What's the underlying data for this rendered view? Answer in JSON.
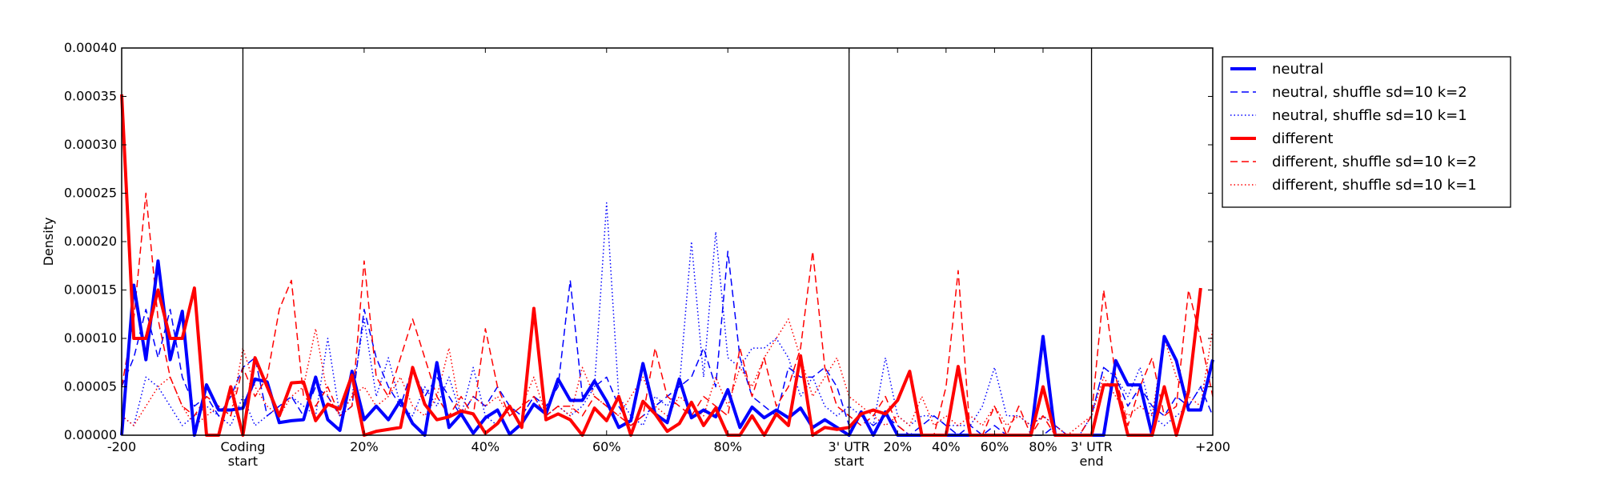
{
  "chart_data": {
    "type": "line",
    "title": "",
    "xlabel": "",
    "ylabel": "Density",
    "ylim": [
      0,
      0.0004
    ],
    "yticks": [
      "0.00000",
      "0.00005",
      "0.00010",
      "0.00015",
      "0.00020",
      "0.00025",
      "0.00030",
      "0.00035",
      "0.00040"
    ],
    "x_tick_labels": [
      {
        "label": "-200",
        "x": 0
      },
      {
        "label": "Coding\nstart",
        "x": 10
      },
      {
        "label": "20%",
        "x": 20
      },
      {
        "label": "40%",
        "x": 30
      },
      {
        "label": "60%",
        "x": 40
      },
      {
        "label": "80%",
        "x": 50
      },
      {
        "label": "3' UTR\nstart",
        "x": 60
      },
      {
        "label": "20%",
        "x": 64
      },
      {
        "label": "40%",
        "x": 68
      },
      {
        "label": "60%",
        "x": 72
      },
      {
        "label": "80%",
        "x": 76
      },
      {
        "label": "3' UTR\nend",
        "x": 80
      },
      {
        "label": "+200",
        "x": 90
      }
    ],
    "xlim": [
      0,
      90
    ],
    "region_boundaries": [
      10,
      60,
      80
    ],
    "grid": false,
    "legend_position": "outside-right-top",
    "series": [
      {
        "name": "neutral",
        "color": "#0000ff",
        "style": "solid",
        "width": 4,
        "values": [
          0,
          0.000155,
          7.8e-05,
          0.00018,
          7.8e-05,
          0.000128,
          0,
          5.2e-05,
          2.6e-05,
          2.6e-05,
          2.8e-05,
          5.8e-05,
          5.5e-05,
          1.3e-05,
          1.5e-05,
          1.6e-05,
          6e-05,
          1.6e-05,
          5e-06,
          6.6e-05,
          1.6e-05,
          3e-05,
          1.6e-05,
          3.6e-05,
          1.2e-05,
          0,
          7.5e-05,
          8e-06,
          2.2e-05,
          2e-06,
          1.8e-05,
          2.6e-05,
          1e-06,
          1.2e-05,
          3.2e-05,
          2.2e-05,
          5.8e-05,
          3.6e-05,
          3.6e-05,
          5.6e-05,
          3.5e-05,
          8e-06,
          1.5e-05,
          7.4e-05,
          2.2e-05,
          1.3e-05,
          5.8e-05,
          1.8e-05,
          2.6e-05,
          1.9e-05,
          4.7e-05,
          8e-06,
          2.9e-05,
          1.8e-05,
          2.6e-05,
          1.8e-05,
          2.8e-05,
          8e-06,
          1.6e-05,
          8e-06,
          0,
          2.4e-05,
          0,
          2.4e-05,
          0,
          0,
          0,
          0,
          0,
          0,
          0,
          0,
          0,
          0,
          0,
          0,
          0.000102,
          0,
          0,
          0,
          0,
          0,
          7.7e-05,
          5.2e-05,
          5.2e-05,
          0,
          0.000102,
          7.7e-05,
          2.6e-05,
          2.6e-05,
          7.8e-05
        ]
      },
      {
        "name": "neutral, shuffle sd=10 k=2",
        "color": "#0000ff",
        "style": "dashed",
        "width": 1.5,
        "values": [
          5e-05,
          8e-05,
          0.00013,
          8e-05,
          0.00013,
          6e-05,
          3e-05,
          4e-05,
          2e-05,
          4e-05,
          7e-05,
          8e-05,
          2e-05,
          3e-05,
          4e-05,
          2e-05,
          5e-05,
          4e-05,
          2e-05,
          3e-05,
          0.00013,
          8e-05,
          5e-05,
          3e-05,
          7e-05,
          4e-05,
          6e-05,
          4e-05,
          2e-05,
          4e-05,
          3e-05,
          5e-05,
          3e-05,
          2e-05,
          4e-05,
          3e-05,
          5e-05,
          0.00016,
          4e-05,
          5e-05,
          6e-05,
          3e-05,
          1e-05,
          2e-05,
          3e-05,
          4e-05,
          5e-05,
          6e-05,
          9e-05,
          5e-05,
          0.00019,
          8e-05,
          4e-05,
          3e-05,
          2e-05,
          7e-05,
          6e-05,
          6e-05,
          7e-05,
          5e-05,
          1e-05,
          2e-05,
          1e-05,
          2e-05,
          1e-05,
          0,
          1e-05,
          2e-05,
          1e-05,
          0,
          1e-05,
          0,
          1e-05,
          0,
          0,
          0,
          0,
          1e-05,
          0,
          0,
          2e-05,
          7e-05,
          6e-05,
          3e-05,
          5e-05,
          3e-05,
          2e-05,
          4e-05,
          3e-05,
          5e-05,
          2e-05
        ]
      },
      {
        "name": "neutral, shuffle sd=10 k=1",
        "color": "#0000ff",
        "style": "dotted",
        "width": 1.5,
        "values": [
          2e-05,
          1e-05,
          6e-05,
          5e-05,
          3e-05,
          1e-05,
          2e-05,
          3e-05,
          2e-05,
          1e-05,
          4e-05,
          1e-05,
          2e-05,
          3e-05,
          4e-05,
          3e-05,
          2e-05,
          0.0001,
          2e-05,
          4e-05,
          0.00012,
          4e-05,
          8e-05,
          3e-05,
          2e-05,
          5e-05,
          3e-05,
          6e-05,
          2e-05,
          7e-05,
          2e-05,
          1e-05,
          3e-05,
          2e-05,
          4e-05,
          2e-05,
          3e-05,
          2e-05,
          3e-05,
          5e-05,
          0.00024,
          4e-05,
          2e-05,
          1e-05,
          4e-05,
          3e-05,
          5e-05,
          0.0002,
          6e-05,
          0.00021,
          8e-05,
          7e-05,
          9e-05,
          9e-05,
          0.0001,
          8e-05,
          4e-05,
          6e-05,
          3e-05,
          2e-05,
          3e-05,
          2e-05,
          1e-05,
          8e-05,
          2e-05,
          1e-05,
          2e-05,
          2e-05,
          1e-05,
          1e-05,
          1e-05,
          3e-05,
          7e-05,
          2e-05,
          2e-05,
          1e-05,
          2e-05,
          1e-05,
          0,
          0,
          2e-05,
          7e-05,
          6e-05,
          4e-05,
          7e-05,
          2e-05,
          1e-05,
          2e-05,
          3e-05,
          5e-05,
          6e-05
        ]
      },
      {
        "name": "different",
        "color": "#ff0000",
        "style": "solid",
        "width": 4,
        "values": [
          0.000352,
          0.0001,
          0.0001,
          0.00015,
          0.0001,
          0.0001,
          0.000152,
          0,
          0,
          5e-05,
          0,
          8e-05,
          5e-05,
          2e-05,
          5.4e-05,
          5.5e-05,
          1.5e-05,
          3.2e-05,
          2.7e-05,
          6.2e-05,
          0,
          4e-06,
          6e-06,
          8e-06,
          7e-05,
          3.2e-05,
          1.6e-05,
          1.9e-05,
          2.5e-05,
          2.2e-05,
          2e-06,
          1.2e-05,
          3e-05,
          8e-06,
          0.000131,
          1.6e-05,
          2.2e-05,
          1.6e-05,
          0,
          2.8e-05,
          1.5e-05,
          4e-05,
          0,
          3.5e-05,
          2.2e-05,
          4e-06,
          1.2e-05,
          3.4e-05,
          1e-05,
          2.8e-05,
          0,
          0,
          2e-05,
          0,
          2.2e-05,
          1e-05,
          8.2e-05,
          0,
          8e-06,
          6e-06,
          8e-06,
          2.2e-05,
          2.6e-05,
          2.2e-05,
          3.6e-05,
          6.6e-05,
          0,
          0,
          0,
          7.1e-05,
          0,
          0,
          0,
          0,
          0,
          0,
          5e-05,
          0,
          0,
          0,
          0,
          5.2e-05,
          5.2e-05,
          0,
          0,
          0,
          5e-05,
          0,
          4.5e-05,
          0.000152
        ]
      },
      {
        "name": "different, shuffle sd=10 k=2",
        "color": "#ff0000",
        "style": "dashed",
        "width": 1.5,
        "values": [
          5e-05,
          0.00012,
          0.00025,
          0.00012,
          6e-05,
          3e-05,
          2e-05,
          4e-05,
          3e-05,
          2e-05,
          7e-05,
          4e-05,
          6e-05,
          0.00013,
          0.00016,
          4e-05,
          3e-05,
          5e-05,
          2e-05,
          3e-05,
          0.00018,
          6e-05,
          4e-05,
          8e-05,
          0.00012,
          8e-05,
          4e-05,
          2e-05,
          4e-05,
          2e-05,
          0.00011,
          5e-05,
          2e-05,
          3e-05,
          4e-05,
          2e-05,
          3e-05,
          3e-05,
          2e-05,
          4e-05,
          3e-05,
          2e-05,
          1e-05,
          2e-05,
          9e-05,
          4e-05,
          3e-05,
          2e-05,
          4e-05,
          3e-05,
          2e-05,
          9e-05,
          4e-05,
          8e-05,
          3e-05,
          5e-05,
          9e-05,
          0.00019,
          7e-05,
          3e-05,
          2e-05,
          1e-05,
          2e-05,
          4e-05,
          1e-05,
          0,
          0,
          0,
          5e-05,
          0.00017,
          0,
          0,
          3e-05,
          0,
          3e-05,
          0,
          2e-05,
          0,
          0,
          0,
          2e-05,
          0.00015,
          6e-05,
          1e-05,
          5e-05,
          8e-05,
          2e-05,
          3e-05,
          0.00015,
          0.0001,
          4e-05
        ]
      },
      {
        "name": "different, shuffle sd=10 k=1",
        "color": "#ff0000",
        "style": "dotted",
        "width": 1.5,
        "values": [
          2e-05,
          1e-05,
          3e-05,
          5e-05,
          6e-05,
          3e-05,
          1e-05,
          2e-05,
          3e-05,
          2e-05,
          9e-05,
          5e-05,
          3e-05,
          2e-05,
          4e-05,
          5e-05,
          0.00011,
          4e-05,
          2e-05,
          4e-05,
          5e-05,
          3e-05,
          4e-05,
          6e-05,
          3e-05,
          2e-05,
          4e-05,
          9e-05,
          2e-05,
          4e-05,
          3e-05,
          4e-05,
          2e-05,
          3e-05,
          6e-05,
          2e-05,
          3e-05,
          2e-05,
          7e-05,
          4e-05,
          3e-05,
          2e-05,
          4e-05,
          6e-05,
          3e-05,
          2e-05,
          4e-05,
          3e-05,
          2e-05,
          6e-05,
          3e-05,
          7e-05,
          5e-05,
          8e-05,
          0.0001,
          0.00012,
          8e-05,
          4e-05,
          6e-05,
          8e-05,
          4e-05,
          3e-05,
          2e-05,
          1e-05,
          2e-05,
          1e-05,
          4e-05,
          1e-05,
          2e-05,
          1e-05,
          2e-05,
          1e-05,
          3e-05,
          1e-05,
          2e-05,
          1e-05,
          2e-05,
          1e-05,
          0,
          1e-05,
          2e-05,
          6e-05,
          4e-05,
          2e-05,
          3e-05,
          2e-05,
          0.0001,
          6e-05,
          4e-05,
          3e-05,
          0.00011
        ]
      }
    ]
  }
}
